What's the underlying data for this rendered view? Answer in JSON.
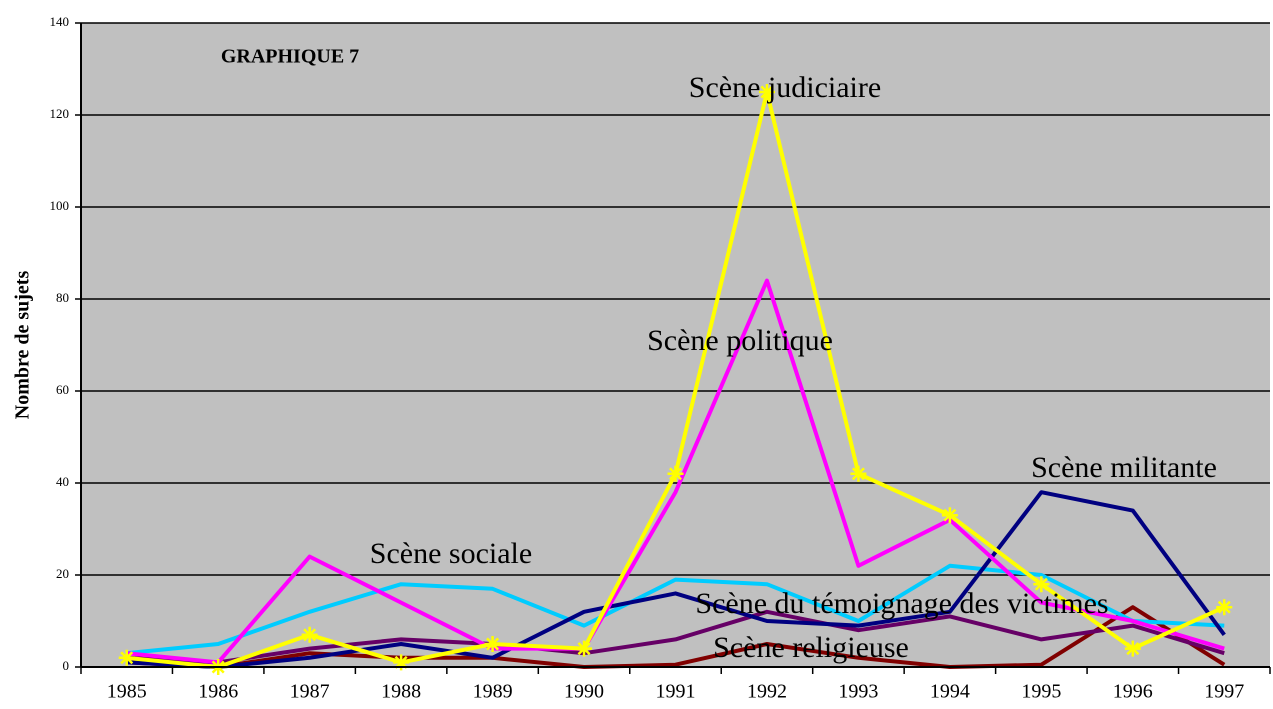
{
  "chart_data": {
    "type": "line",
    "title": "GRAPHIQUE 7",
    "y_label": "Nombre de sujets",
    "categories": [
      "1985",
      "1986",
      "1987",
      "1988",
      "1989",
      "1990",
      "1991",
      "1992",
      "1993",
      "1994",
      "1995",
      "1996",
      "1997"
    ],
    "ylim": [
      0,
      140
    ],
    "yticks": [
      0,
      20,
      40,
      60,
      80,
      100,
      120,
      140
    ],
    "grid": true,
    "series": [
      {
        "name": "Scène judiciaire",
        "color": "#ffff00",
        "marker": "star",
        "values": [
          2,
          0,
          7,
          1,
          5,
          4,
          42,
          125,
          42,
          33,
          18,
          4,
          13
        ]
      },
      {
        "name": "Scène politique",
        "color": "#ff00ff",
        "values": [
          3,
          1,
          24,
          14,
          4,
          4,
          38,
          84,
          22,
          32,
          14,
          10,
          4
        ]
      },
      {
        "name": "Scène militante",
        "color": "#000080",
        "values": [
          1,
          0,
          2,
          5,
          2,
          12,
          16,
          10,
          9,
          12,
          38,
          34,
          7
        ]
      },
      {
        "name": "Scène sociale",
        "color": "#00ccff",
        "values": [
          3,
          5,
          12,
          18,
          17,
          9,
          19,
          18,
          10,
          22,
          20,
          10,
          9
        ]
      },
      {
        "name": "Scène du témoignage des victimes",
        "color": "#660066",
        "values": [
          2,
          1,
          4,
          6,
          5,
          3,
          6,
          12,
          8,
          11,
          6,
          9,
          3
        ]
      },
      {
        "name": "Scène religieuse",
        "color": "#800000",
        "values": [
          1,
          0,
          3,
          2,
          2,
          0,
          0.5,
          5,
          2,
          0,
          0.5,
          13,
          0.5
        ]
      }
    ]
  }
}
